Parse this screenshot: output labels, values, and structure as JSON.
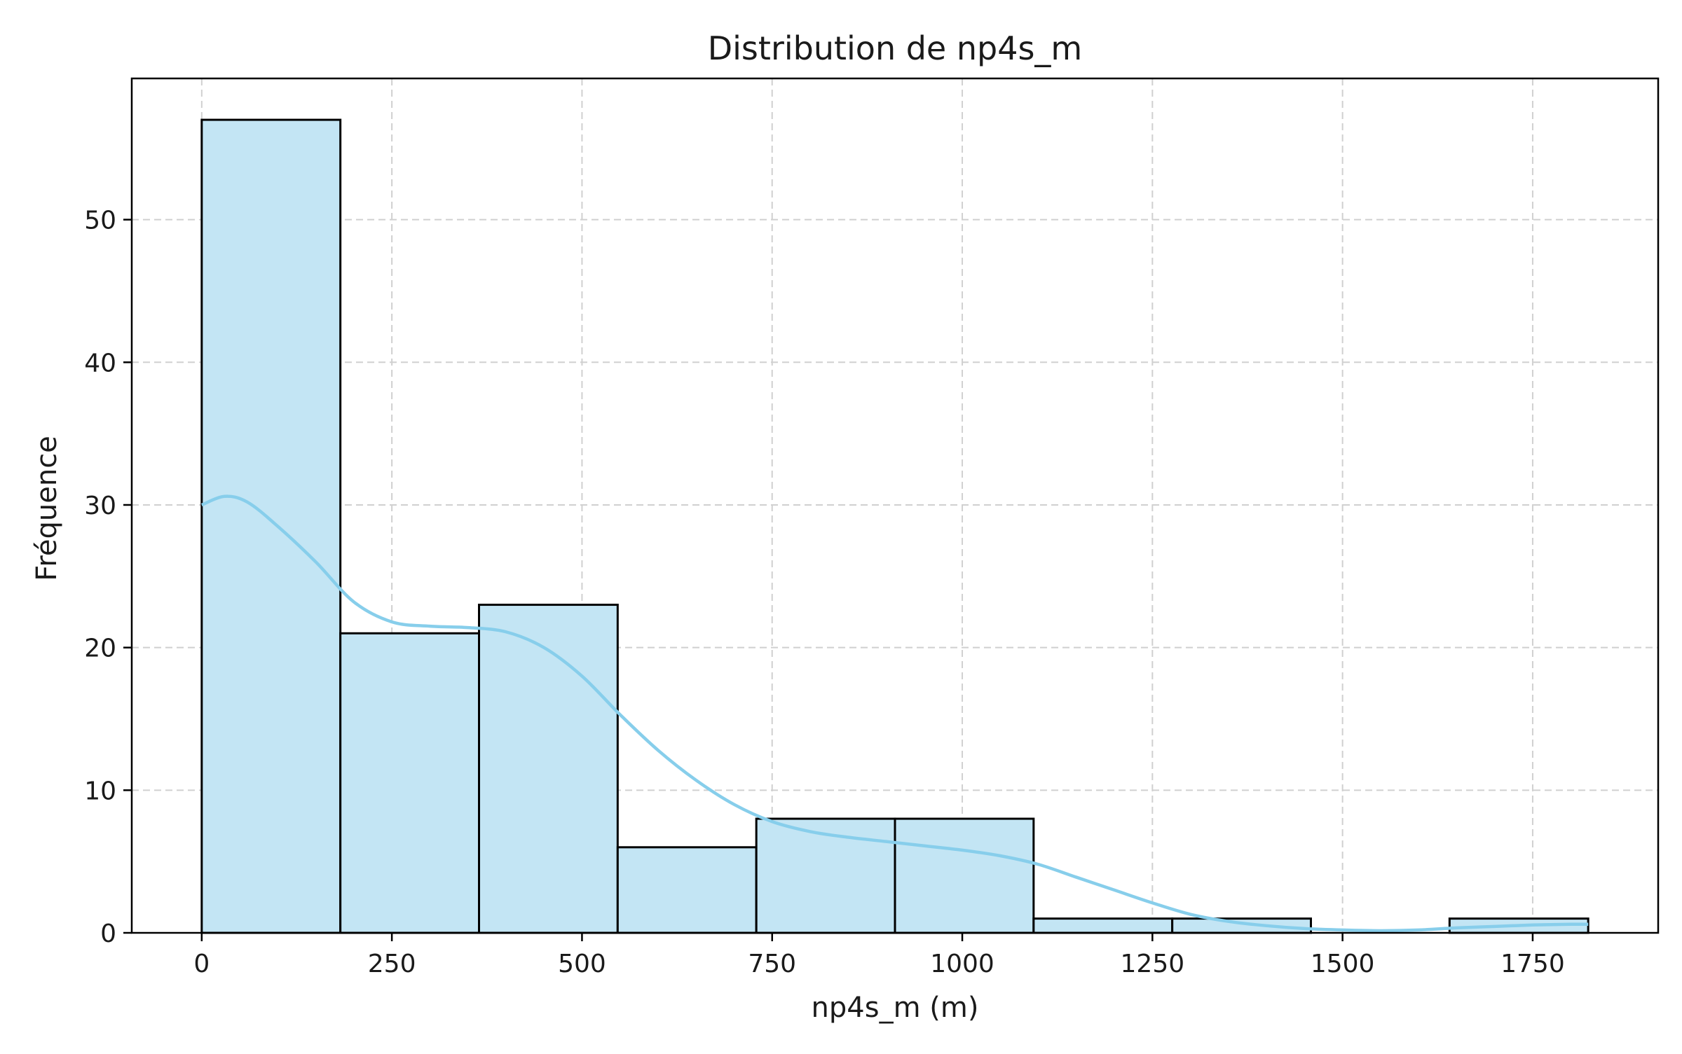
{
  "chart_data": {
    "type": "bar",
    "title": "Distribution de np4s_m",
    "xlabel": "np4s_m (m)",
    "ylabel": "Fréquence",
    "xlim": [
      -92,
      1915
    ],
    "ylim": [
      0,
      59.9
    ],
    "grid": true,
    "x_ticks": [
      0,
      250,
      500,
      750,
      1000,
      1250,
      1500,
      1750
    ],
    "y_ticks": [
      0,
      10,
      20,
      30,
      40,
      50
    ],
    "bins": [
      {
        "start": 0,
        "end": 182.3,
        "count": 57
      },
      {
        "start": 182.3,
        "end": 364.6,
        "count": 21
      },
      {
        "start": 364.6,
        "end": 546.9,
        "count": 23
      },
      {
        "start": 546.9,
        "end": 729.2,
        "count": 6
      },
      {
        "start": 729.2,
        "end": 911.5,
        "count": 8
      },
      {
        "start": 911.5,
        "end": 1093.8,
        "count": 8
      },
      {
        "start": 1093.8,
        "end": 1276.1,
        "count": 1
      },
      {
        "start": 1276.1,
        "end": 1458.4,
        "count": 1
      },
      {
        "start": 1458.4,
        "end": 1640.7,
        "count": 0
      },
      {
        "start": 1640.7,
        "end": 1823,
        "count": 1
      }
    ],
    "kde": {
      "x": [
        0,
        30,
        60,
        100,
        150,
        200,
        250,
        300,
        350,
        400,
        450,
        500,
        550,
        600,
        650,
        700,
        750,
        800,
        850,
        900,
        950,
        1000,
        1050,
        1100,
        1150,
        1200,
        1250,
        1300,
        1350,
        1400,
        1450,
        1500,
        1550,
        1600,
        1650,
        1700,
        1750,
        1800,
        1823
      ],
      "y": [
        30,
        30.6,
        30.2,
        28.5,
        26,
        23.2,
        21.8,
        21.5,
        21.4,
        21.1,
        20,
        18,
        15.3,
        12.8,
        10.7,
        9,
        7.8,
        7.1,
        6.7,
        6.4,
        6.1,
        5.8,
        5.4,
        4.8,
        3.9,
        3,
        2.1,
        1.3,
        0.8,
        0.5,
        0.3,
        0.2,
        0.15,
        0.2,
        0.35,
        0.45,
        0.55,
        0.6,
        0.6
      ]
    },
    "colors": {
      "bar_fill": "#c3e5f4",
      "bar_edge": "#000000",
      "kde_line": "#87ceeb",
      "grid": "#d0d0d0"
    }
  }
}
